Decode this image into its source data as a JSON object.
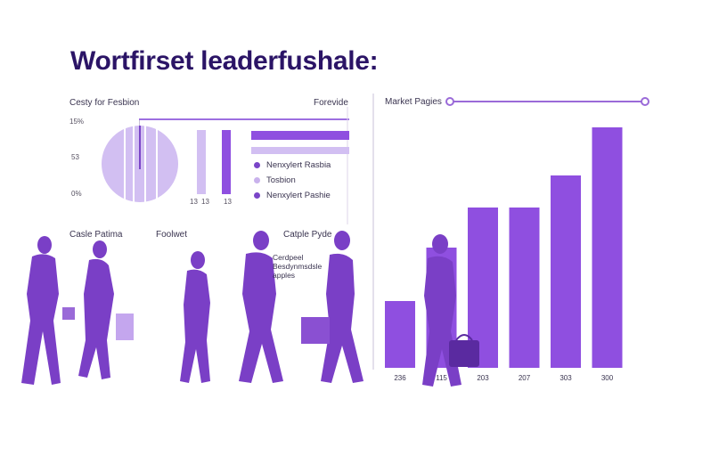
{
  "title": "Wortfirset leaderfushale:",
  "left_panel": {
    "heading_left": "Cesty for Fesbion",
    "heading_right": "Forevide",
    "y_ticks": [
      "15%",
      "53",
      "0%"
    ],
    "small_bar_ticks": [
      "13",
      "13"
    ],
    "small_bar_tick_right": "13",
    "legend": [
      {
        "label": "Nenxylert Rasbia",
        "color": "#7a45c8"
      },
      {
        "label": "Tosbion",
        "color": "#c9b2ec"
      },
      {
        "label": "Nenxylert Pashie",
        "color": "#7a45c8"
      }
    ],
    "lower_labels": {
      "label_1": "Casle Patima",
      "label_2": "Foolwet",
      "label_3": "Catple Pyde",
      "note": "Cerdpeel\nBesdynmsdsle\napples"
    }
  },
  "colors": {
    "accent": "#8f4fe0",
    "light": "#d2bff2",
    "silhouette": "#7a3fc6",
    "title": "#2b1466"
  },
  "chart_data": {
    "type": "bar",
    "title": "Market Pagies",
    "categories": [
      "236",
      "115",
      "203",
      "207",
      "303",
      "300"
    ],
    "values": [
      25,
      45,
      60,
      60,
      72,
      90
    ],
    "ylim": [
      0,
      100
    ],
    "grid": false
  }
}
